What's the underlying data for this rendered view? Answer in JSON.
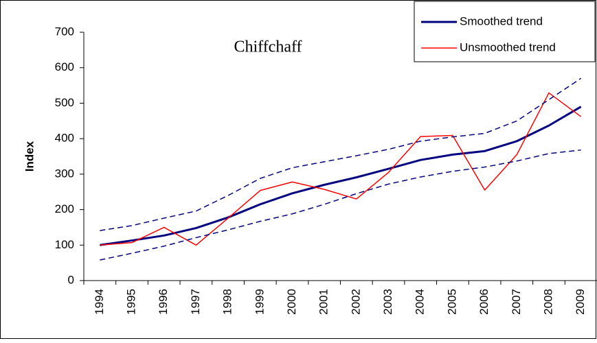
{
  "chart_data": {
    "type": "line",
    "title": "Chiffchaff",
    "y_label": "Index",
    "categories": [
      "1994",
      "1995",
      "1996",
      "1997",
      "1998",
      "1999",
      "2000",
      "2001",
      "2002",
      "2003",
      "2004",
      "2005",
      "2006",
      "2007",
      "2008",
      "2009"
    ],
    "series": [
      {
        "name": "Smoothed trend",
        "color": "#000080",
        "width": 3,
        "dashed": false,
        "values": [
          100,
          113,
          127,
          148,
          178,
          215,
          246,
          270,
          291,
          315,
          340,
          355,
          365,
          393,
          437,
          490
        ]
      },
      {
        "name": "Unsmoothed trend",
        "color": "#ff0000",
        "width": 1.5,
        "dashed": false,
        "values": [
          100,
          107,
          150,
          100,
          176,
          254,
          278,
          257,
          230,
          305,
          406,
          409,
          255,
          355,
          529,
          462
        ]
      },
      {
        "color": "#000080",
        "width": 1.5,
        "dashed": true,
        "values": [
          141,
          155,
          176,
          196,
          240,
          288,
          318,
          335,
          352,
          370,
          393,
          405,
          415,
          450,
          510,
          570
        ]
      },
      {
        "color": "#000080",
        "width": 1.5,
        "dashed": true,
        "values": [
          58,
          77,
          97,
          121,
          143,
          167,
          188,
          215,
          245,
          272,
          292,
          308,
          320,
          337,
          358,
          368
        ]
      }
    ],
    "ylim": [
      0,
      700
    ],
    "yticks": [
      0,
      100,
      200,
      300,
      400,
      500,
      600,
      700
    ],
    "grid": false,
    "legend": "top-right"
  }
}
